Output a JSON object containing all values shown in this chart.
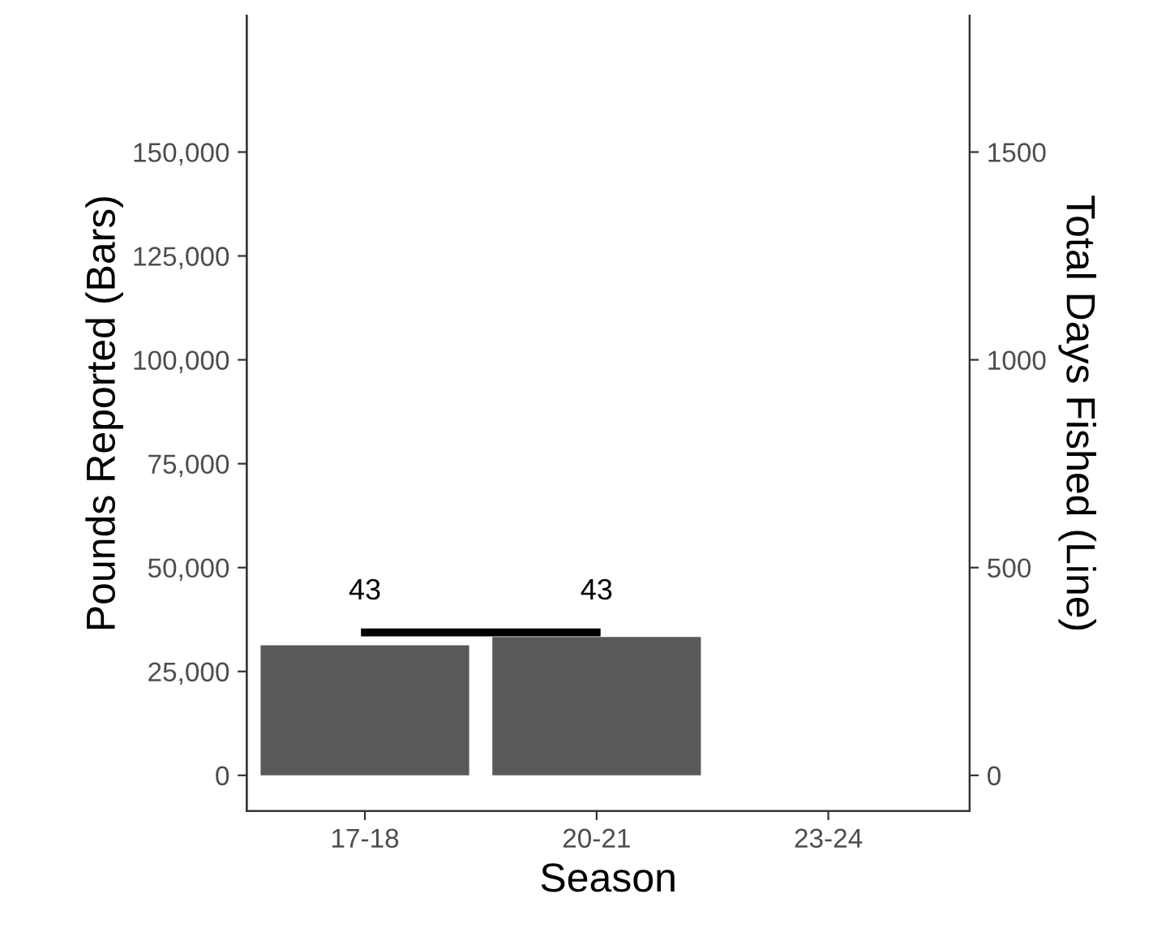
{
  "chart_data": {
    "type": "bar",
    "xlabel": "Season",
    "ylabel": "Pounds Reported (Bars)",
    "y2label": "Total Days Fished (Line)",
    "categories": [
      "17-18",
      "20-21",
      "23-24"
    ],
    "series": [
      {
        "color": "#595959",
        "values": [
          31300,
          33300,
          null
        ]
      },
      {
        "type": "line",
        "axis": "y2",
        "color": "#000000",
        "values": [
          344,
          344,
          null
        ],
        "line_style": "solid",
        "marker": "none"
      }
    ],
    "annotations": [
      "43",
      "43"
    ],
    "ylim": [
      -8600,
      182800
    ],
    "yticks": [
      {
        "value": 0,
        "label": "0"
      },
      {
        "value": 25000,
        "label": "25,000"
      },
      {
        "value": 50000,
        "label": "50,000"
      },
      {
        "value": 75000,
        "label": "75,000"
      },
      {
        "value": 100000,
        "label": "100,000"
      },
      {
        "value": 125000,
        "label": "125,000"
      },
      {
        "value": 150000,
        "label": "150,000"
      }
    ],
    "y2lim": [
      -86,
      1828
    ],
    "y2ticks": [
      0,
      500,
      1000,
      1500
    ],
    "grid": false,
    "legend": false
  }
}
